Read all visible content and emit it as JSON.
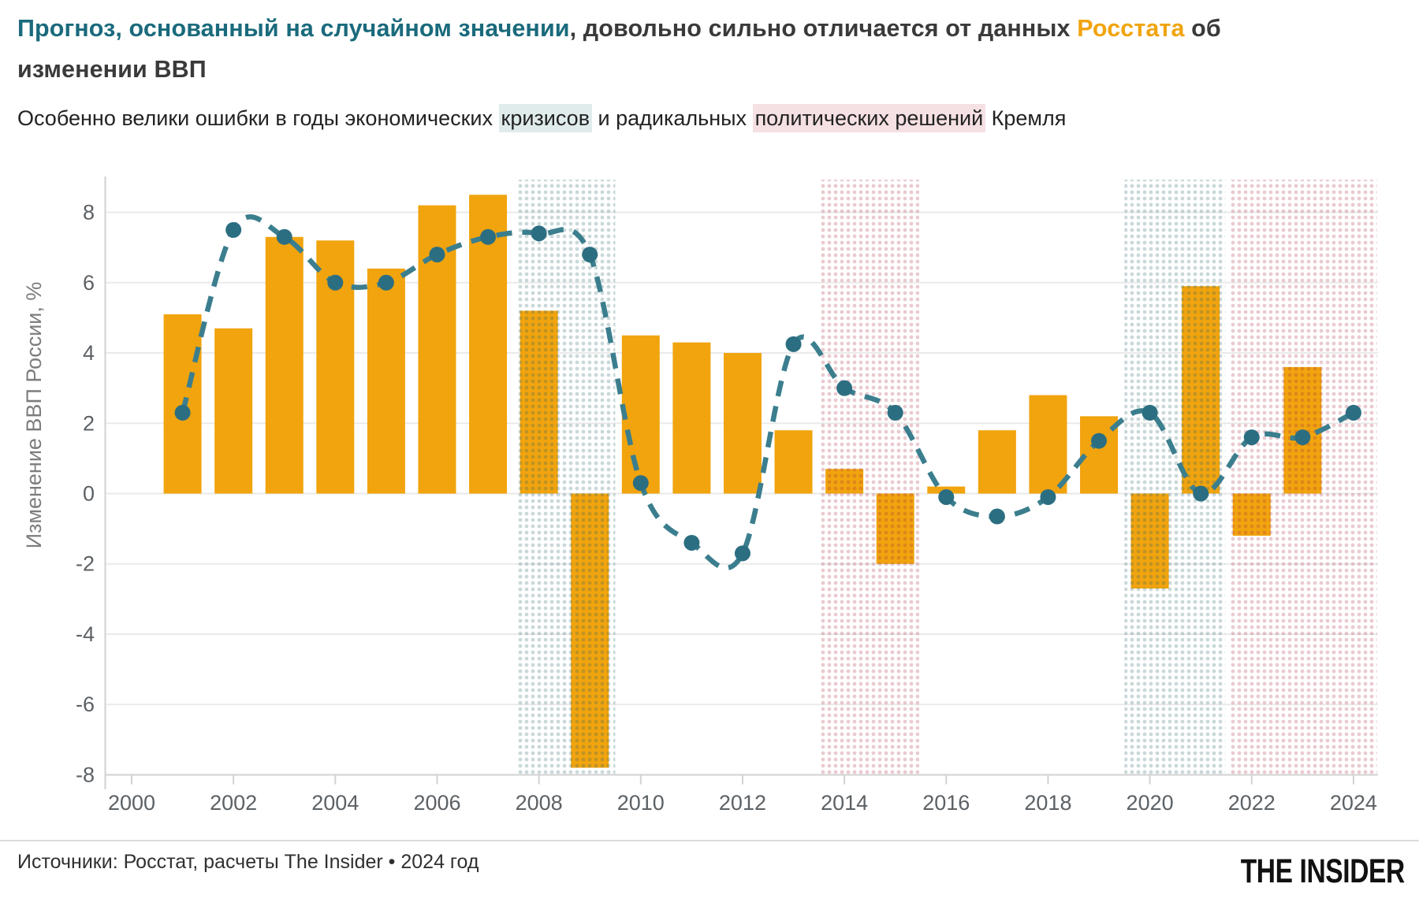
{
  "header": {
    "title_segments": [
      {
        "text": "Прогноз, основанный на случайном значении",
        "color": "title_teal"
      },
      {
        "text": ", довольно сильно отличается от данных ",
        "color": "title_dark"
      },
      {
        "text": "Росстата",
        "color": "orange"
      },
      {
        "text": " об изменении ВВП",
        "color": "title_dark"
      }
    ],
    "subtitle_segments": [
      {
        "text": "Особенно велики ошибки в годы экономических ",
        "hl": null
      },
      {
        "text": "кризисов",
        "hl": "hl_teal"
      },
      {
        "text": " и радикальных ",
        "hl": null
      },
      {
        "text": "политических решений",
        "hl": "hl_pink"
      },
      {
        "text": " Кремля",
        "hl": null
      }
    ]
  },
  "footer": {
    "source": "Источники: Росстат, расчеты The Insider • 2024 год",
    "logo": "THE INSIDER"
  },
  "colors": {
    "title_teal": "#1A6A7C",
    "title_dark": "#3A3A3A",
    "orange": "#F1A40E",
    "hl_teal": "#DFECEB",
    "hl_pink": "#F5E0E3",
    "line": "#3B7E8E",
    "marker": "#2C6E81",
    "band_crisis_dot": "#2A60643F",
    "band_politics_dot": "#A52D423F",
    "grid": "#EAEAEA",
    "axis": "#D2D2D2",
    "tick_text": "#5C6165",
    "ylabel_text": "#7D7D7D"
  },
  "chart_data": {
    "type": "bar+line",
    "title": "Изменение ВВП России: данные Росстата (столбцы) и прогноз на случайном значении (пунктир)",
    "xlabel": "",
    "ylabel": "Изменение ВВП России, %",
    "ylim": [
      -8,
      9
    ],
    "x_ticks": [
      2000,
      2002,
      2004,
      2006,
      2008,
      2010,
      2012,
      2014,
      2016,
      2018,
      2020,
      2022,
      2024
    ],
    "y_ticks": [
      8,
      6,
      4,
      2,
      0,
      -2,
      -4,
      -6,
      -8
    ],
    "grid": true,
    "legend_position": "none",
    "bars": {
      "name": "Данные Росстата",
      "years": [
        2001,
        2002,
        2003,
        2004,
        2005,
        2006,
        2007,
        2008,
        2009,
        2010,
        2011,
        2012,
        2013,
        2014,
        2015,
        2016,
        2017,
        2018,
        2019,
        2020,
        2021,
        2022,
        2023
      ],
      "values": [
        5.1,
        4.7,
        7.3,
        7.2,
        6.4,
        8.2,
        8.5,
        5.2,
        -7.8,
        4.5,
        4.3,
        4.0,
        1.8,
        0.7,
        -2.0,
        0.2,
        1.8,
        2.8,
        2.2,
        -2.7,
        5.9,
        -1.2,
        3.6
      ]
    },
    "line": {
      "name": "Прогноз, основанный на случайном значении",
      "years": [
        2001,
        2002,
        2003,
        2004,
        2005,
        2006,
        2007,
        2008,
        2009,
        2010,
        2011,
        2012,
        2013,
        2014,
        2015,
        2016,
        2017,
        2018,
        2019,
        2020,
        2021,
        2022,
        2023,
        2024
      ],
      "values": [
        2.3,
        7.5,
        7.3,
        6.0,
        6.0,
        6.8,
        7.3,
        7.4,
        6.8,
        0.3,
        -1.4,
        -1.7,
        4.25,
        3.0,
        2.3,
        -0.1,
        -0.65,
        -0.1,
        1.5,
        2.3,
        0.0,
        1.6,
        1.6,
        2.3
      ]
    },
    "bands": [
      {
        "kind": "crisis",
        "from": 2007.55,
        "to": 2009.5
      },
      {
        "kind": "politics",
        "from": 2013.5,
        "to": 2015.47
      },
      {
        "kind": "crisis",
        "from": 2019.5,
        "to": 2021.48
      },
      {
        "kind": "politics",
        "from": 2021.58,
        "to": 2024.46
      }
    ]
  }
}
